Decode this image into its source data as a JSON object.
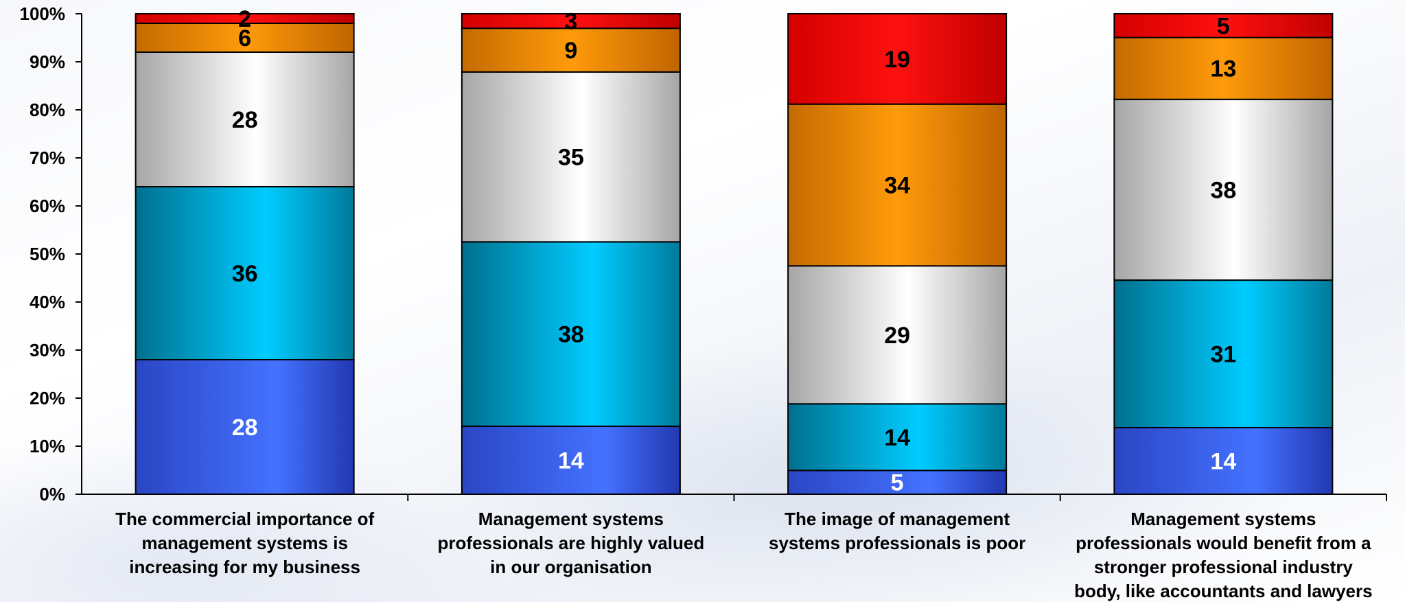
{
  "chart_data": {
    "type": "bar",
    "stacked": true,
    "percent": true,
    "title": "",
    "xlabel": "",
    "ylabel": "",
    "ylim": [
      0,
      100
    ],
    "y_ticks": [
      "0%",
      "10%",
      "20%",
      "30%",
      "40%",
      "50%",
      "60%",
      "70%",
      "80%",
      "90%",
      "100%"
    ],
    "grid": false,
    "legend": "none",
    "categories": [
      "The commercial importance of management systems is increasing for my business",
      "Management systems professionals are highly valued in our organisation",
      "The image of management systems professionals is poor",
      "Management systems professionals would benefit from a stronger professional industry body, like accountants and lawyers"
    ],
    "category_lines": [
      [
        "The commercial importance of",
        "management systems is",
        "increasing for my business"
      ],
      [
        "Management systems",
        "professionals are highly valued",
        "in our organisation"
      ],
      [
        "The image of management",
        "systems professionals is poor"
      ],
      [
        "Management systems",
        "professionals would benefit from a",
        "stronger professional industry",
        "body, like accountants and lawyers"
      ]
    ],
    "series": [
      {
        "values": [
          28,
          14,
          5,
          14
        ],
        "color": "#3a5fe0",
        "label_color": "#ffffff"
      },
      {
        "values": [
          36,
          38,
          14,
          31
        ],
        "color": "#10b8e6",
        "label_color": "#000000"
      },
      {
        "values": [
          28,
          35,
          29,
          38
        ],
        "color": "#d8d8d8",
        "label_color": "#000000"
      },
      {
        "values": [
          6,
          9,
          34,
          13
        ],
        "color": "#f0900a",
        "label_color": "#000000"
      },
      {
        "values": [
          2,
          3,
          19,
          5
        ],
        "color": "#ee1010",
        "label_color": "#000000"
      }
    ]
  }
}
